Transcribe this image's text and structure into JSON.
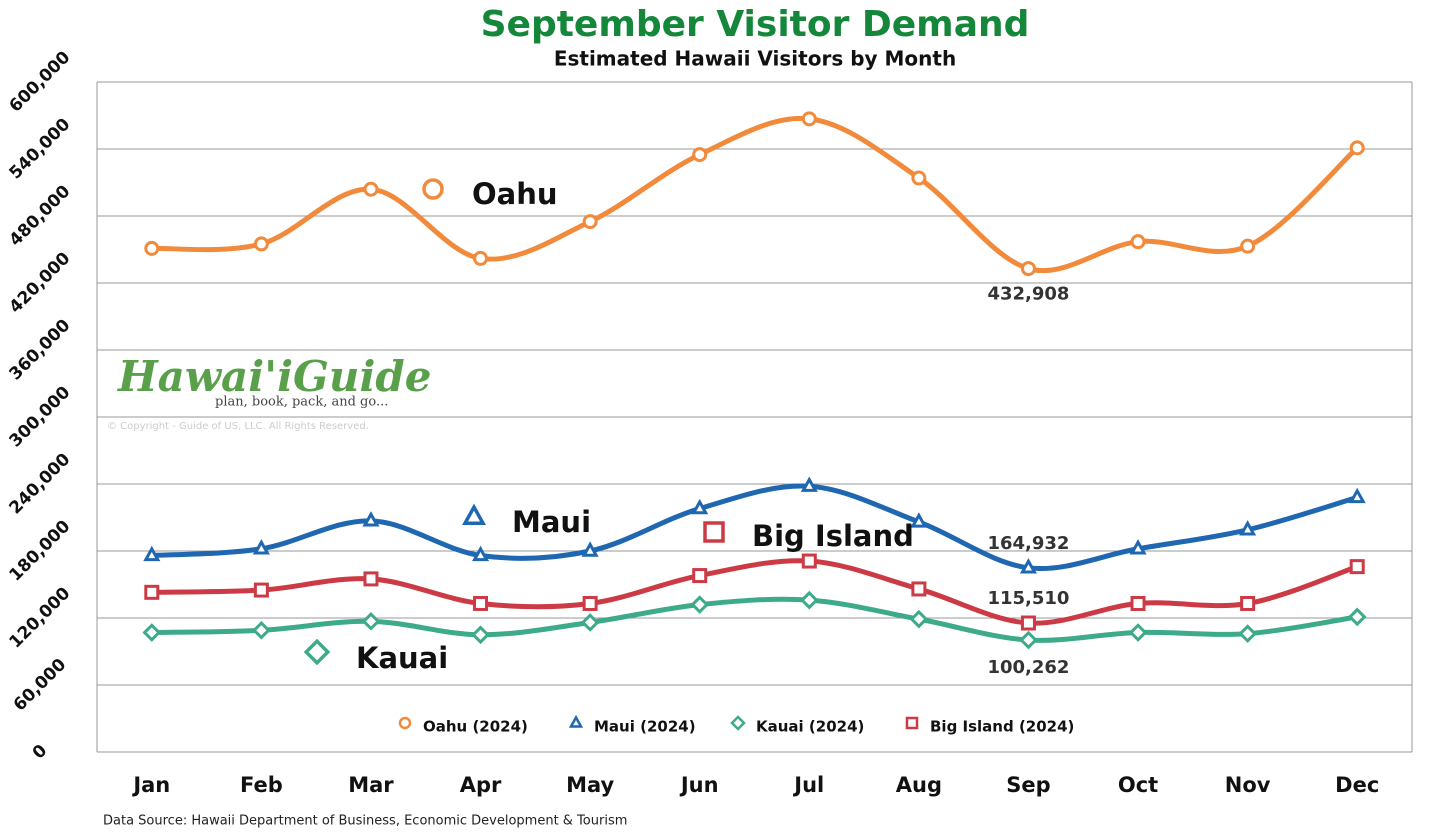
{
  "chart_data": {
    "type": "line",
    "title": "September Visitor Demand",
    "subtitle": "Estimated Hawaii Visitors by Month",
    "source": "Data Source: Hawaii Department of Business, Economic Development & Tourism",
    "watermark": {
      "logo": "Hawai'iGuide",
      "tagline": "plan, book, pack, and go...",
      "copyright": "© Copyright - Guide of US, LLC. All Rights Reserved."
    },
    "categories": [
      "Jan",
      "Feb",
      "Mar",
      "Apr",
      "May",
      "Jun",
      "Jul",
      "Aug",
      "Sep",
      "Oct",
      "Nov",
      "Dec"
    ],
    "ylim": [
      0,
      600000
    ],
    "yticks": [
      0,
      {
        "value": 60000,
        "label": "60,000"
      },
      {
        "value": 120000,
        "label": "120,000"
      },
      {
        "value": 180000,
        "label": "180,000"
      },
      {
        "value": 240000,
        "label": "240,000"
      },
      {
        "value": 300000,
        "label": "300,000"
      },
      {
        "value": 360000,
        "label": "360,000"
      },
      {
        "value": 420000,
        "label": "420,000"
      },
      {
        "value": 480000,
        "label": "480,000"
      },
      {
        "value": 540000,
        "label": "540,000"
      },
      {
        "value": 600000,
        "label": "600,000"
      }
    ],
    "grid": true,
    "legend": "bottom",
    "series": [
      {
        "name": "Oahu (2024)",
        "label": "Oahu",
        "marker": "circle",
        "color": "#f28a3c",
        "values": [
          451000,
          455000,
          504000,
          442000,
          475000,
          535000,
          567000,
          514000,
          432908,
          457000,
          453000,
          541000
        ],
        "value_labels": [
          null,
          null,
          null,
          null,
          null,
          null,
          null,
          null,
          "432,908",
          null,
          null,
          null
        ]
      },
      {
        "name": "Maui (2024)",
        "label": "Maui",
        "marker": "triangle",
        "color": "#1f67b1",
        "values": [
          176000,
          182000,
          207000,
          176000,
          180000,
          218000,
          238000,
          206000,
          164932,
          182000,
          199000,
          228000
        ],
        "value_labels": [
          null,
          null,
          null,
          null,
          null,
          null,
          null,
          null,
          "164,932",
          null,
          null,
          null
        ]
      },
      {
        "name": "Kauai (2024)",
        "label": "Kauai",
        "marker": "diamond",
        "color": "#3daa8a",
        "values": [
          107000,
          109000,
          117000,
          105000,
          116000,
          132000,
          136000,
          119000,
          100262,
          107000,
          106000,
          121000
        ],
        "value_labels": [
          null,
          null,
          null,
          null,
          null,
          null,
          null,
          null,
          "100,262",
          null,
          null,
          null
        ]
      },
      {
        "name": "Big Island (2024)",
        "label": "Big Island",
        "marker": "square",
        "color": "#cc3b45",
        "values": [
          143000,
          145000,
          155000,
          133000,
          133000,
          158000,
          171000,
          146000,
          115510,
          133000,
          133000,
          166000
        ],
        "value_labels": [
          null,
          null,
          null,
          null,
          null,
          null,
          null,
          null,
          "115,510",
          null,
          null,
          null
        ]
      }
    ]
  }
}
